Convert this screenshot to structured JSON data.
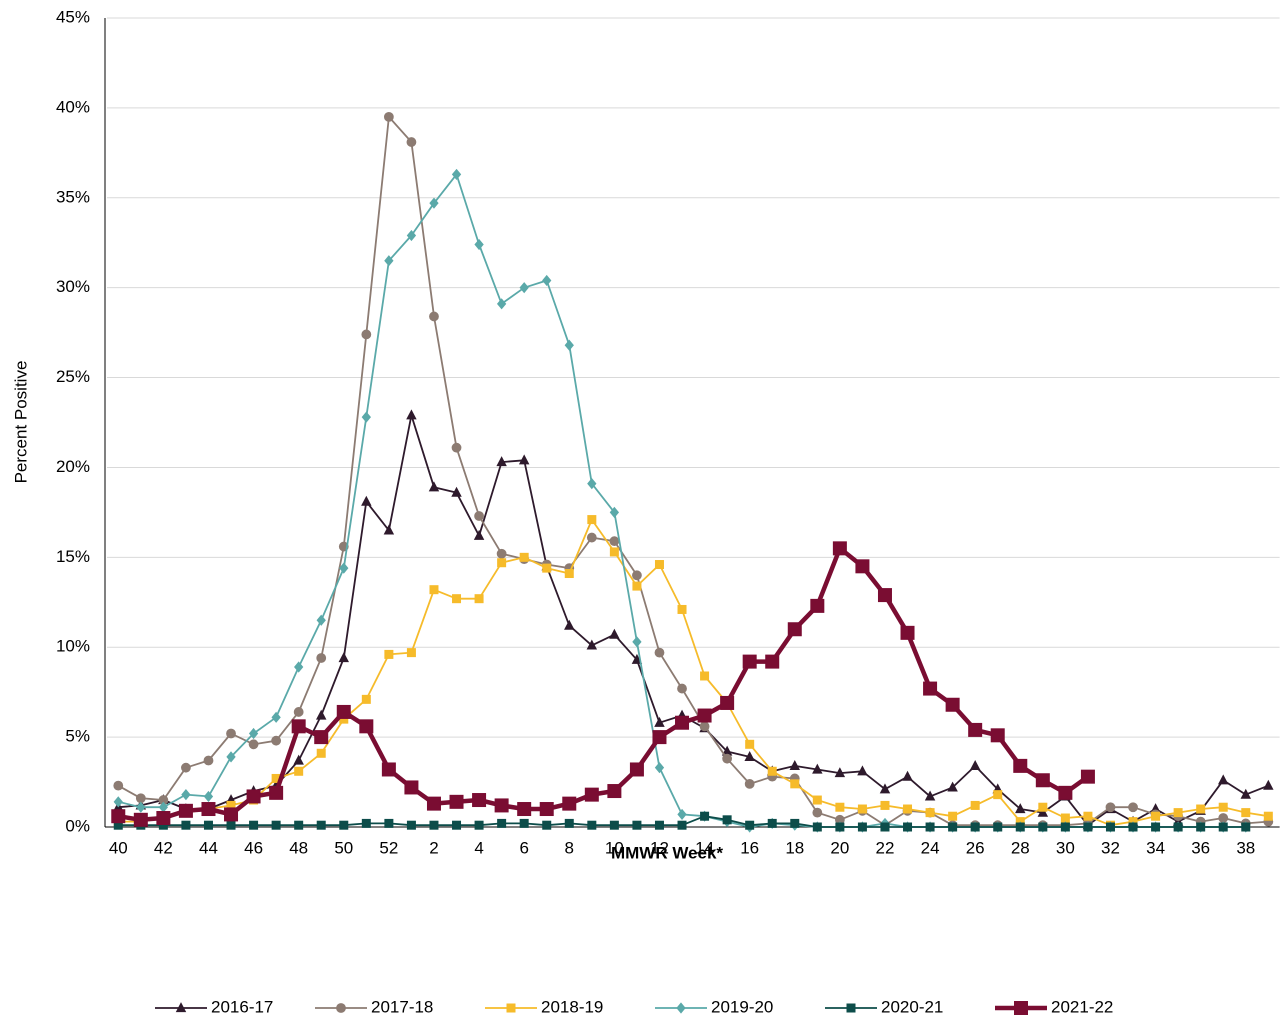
{
  "chart_data": {
    "type": "line",
    "x_label": "MMWR Week*",
    "y_label": "Percent Positive",
    "categories": [
      40,
      null,
      42,
      null,
      44,
      null,
      46,
      null,
      48,
      null,
      50,
      null,
      52,
      null,
      2,
      null,
      4,
      null,
      6,
      null,
      8,
      null,
      10,
      null,
      12,
      null,
      14,
      null,
      16,
      null,
      18,
      null,
      20,
      null,
      22,
      null,
      24,
      null,
      26,
      null,
      28,
      null,
      30,
      null,
      32,
      null,
      34,
      null,
      36,
      null,
      38,
      null
    ],
    "ylim": [
      0,
      45
    ],
    "yticks": [
      {
        "value": 0,
        "label": "0%"
      },
      {
        "value": 5,
        "label": "5%"
      },
      {
        "value": 10,
        "label": "10%"
      },
      {
        "value": 15,
        "label": "15%"
      },
      {
        "value": 20,
        "label": "20%"
      },
      {
        "value": 25,
        "label": "25%"
      },
      {
        "value": 30,
        "label": "30%"
      },
      {
        "value": 35,
        "label": "35%"
      },
      {
        "value": 40,
        "label": "40%"
      },
      {
        "value": 45,
        "label": "45%"
      }
    ],
    "grid": true,
    "legend": "bottom",
    "series": [
      {
        "name": "2016-17",
        "color": "#2e1a2c",
        "marker": "triangle",
        "width": 1.8,
        "values": [
          1.1,
          1.2,
          1.5,
          1.0,
          1.0,
          1.5,
          2.0,
          2.3,
          3.7,
          6.2,
          9.4,
          18.1,
          16.5,
          22.9,
          18.9,
          18.6,
          16.2,
          20.3,
          20.4,
          14.5,
          11.2,
          10.1,
          10.7,
          9.3,
          5.8,
          6.2,
          5.5,
          4.2,
          3.9,
          3.1,
          3.4,
          3.2,
          3.0,
          3.1,
          2.1,
          2.8,
          1.7,
          2.2,
          3.4,
          2.1,
          1.0,
          0.8,
          1.7,
          0.1,
          1.0,
          0.3,
          1.0,
          0.3,
          0.9,
          2.6,
          1.8,
          2.3
        ]
      },
      {
        "name": "2017-18",
        "color": "#8c7b72",
        "marker": "circle",
        "width": 1.8,
        "values": [
          2.3,
          1.6,
          1.5,
          3.3,
          3.7,
          5.2,
          4.6,
          4.8,
          6.4,
          9.4,
          15.6,
          27.4,
          39.5,
          38.1,
          28.4,
          21.1,
          17.3,
          15.2,
          14.9,
          14.6,
          14.4,
          16.1,
          15.9,
          14.0,
          9.7,
          7.7,
          5.6,
          3.8,
          2.4,
          2.8,
          2.7,
          0.8,
          0.4,
          0.9,
          0.1,
          0.9,
          0.8,
          0.1,
          0.1,
          0.1,
          0.1,
          0.1,
          0.1,
          0.2,
          1.1,
          1.1,
          0.7,
          0.6,
          0.3,
          0.5,
          0.2,
          0.3
        ]
      },
      {
        "name": "2018-19",
        "color": "#f6bb2a",
        "marker": "square",
        "width": 1.8,
        "values": [
          0.3,
          0.3,
          0.5,
          0.8,
          1.0,
          1.2,
          1.5,
          2.7,
          3.1,
          4.1,
          6.0,
          7.1,
          9.6,
          9.7,
          13.2,
          12.7,
          12.7,
          14.7,
          15.0,
          14.4,
          14.1,
          17.1,
          15.3,
          13.4,
          14.6,
          12.1,
          8.4,
          6.9,
          4.6,
          3.1,
          2.4,
          1.5,
          1.1,
          1.0,
          1.2,
          1.0,
          0.8,
          0.6,
          1.2,
          1.8,
          0.3,
          1.1,
          0.5,
          0.6,
          0.1,
          0.3,
          0.6,
          0.8,
          1.0,
          1.1,
          0.8,
          0.6
        ]
      },
      {
        "name": "2019-20",
        "color": "#5aa9a9",
        "marker": "diamond",
        "width": 1.8,
        "values": [
          1.4,
          1.1,
          1.1,
          1.8,
          1.7,
          3.9,
          5.2,
          6.1,
          8.9,
          11.5,
          14.4,
          22.8,
          31.5,
          32.9,
          34.7,
          36.3,
          32.4,
          29.1,
          30.0,
          30.4,
          26.8,
          19.1,
          17.5,
          10.3,
          3.3,
          0.7,
          0.6,
          0.3,
          0.0,
          0.2,
          0.1,
          0,
          0,
          0,
          0.2,
          0,
          0,
          0,
          0,
          0,
          0,
          0,
          0,
          0,
          0,
          0,
          0,
          0,
          0,
          0,
          0,
          null
        ]
      },
      {
        "name": "2020-21",
        "color": "#0d4d4a",
        "marker": "square",
        "width": 1.8,
        "values": [
          0.1,
          0.1,
          0.1,
          0.1,
          0.1,
          0.1,
          0.1,
          0.1,
          0.1,
          0.1,
          0.1,
          0.2,
          0.2,
          0.1,
          0.1,
          0.1,
          0.1,
          0.2,
          0.2,
          0.1,
          0.2,
          0.1,
          0.1,
          0.1,
          0.1,
          0.1,
          0.6,
          0.4,
          0.1,
          0.2,
          0.2,
          0,
          0,
          0,
          0,
          0,
          0,
          0,
          0,
          0,
          0,
          0,
          0,
          0,
          0,
          0,
          0,
          0,
          0,
          0,
          0,
          null
        ]
      },
      {
        "name": "2021-22",
        "color": "#7a0d32",
        "marker": "square",
        "width": 4.5,
        "values": [
          0.6,
          0.4,
          0.5,
          0.9,
          1.0,
          0.7,
          1.7,
          1.9,
          5.6,
          5.0,
          6.4,
          5.6,
          3.2,
          2.2,
          1.3,
          1.4,
          1.5,
          1.2,
          1.0,
          1.0,
          1.3,
          1.8,
          2.0,
          3.2,
          5.0,
          5.8,
          6.2,
          6.9,
          9.2,
          9.2,
          11.0,
          12.3,
          15.5,
          14.5,
          12.9,
          10.8,
          7.7,
          6.8,
          5.4,
          5.1,
          3.4,
          2.6,
          1.9,
          2.8,
          null,
          null,
          null,
          null,
          null,
          null,
          null,
          null
        ]
      }
    ]
  }
}
